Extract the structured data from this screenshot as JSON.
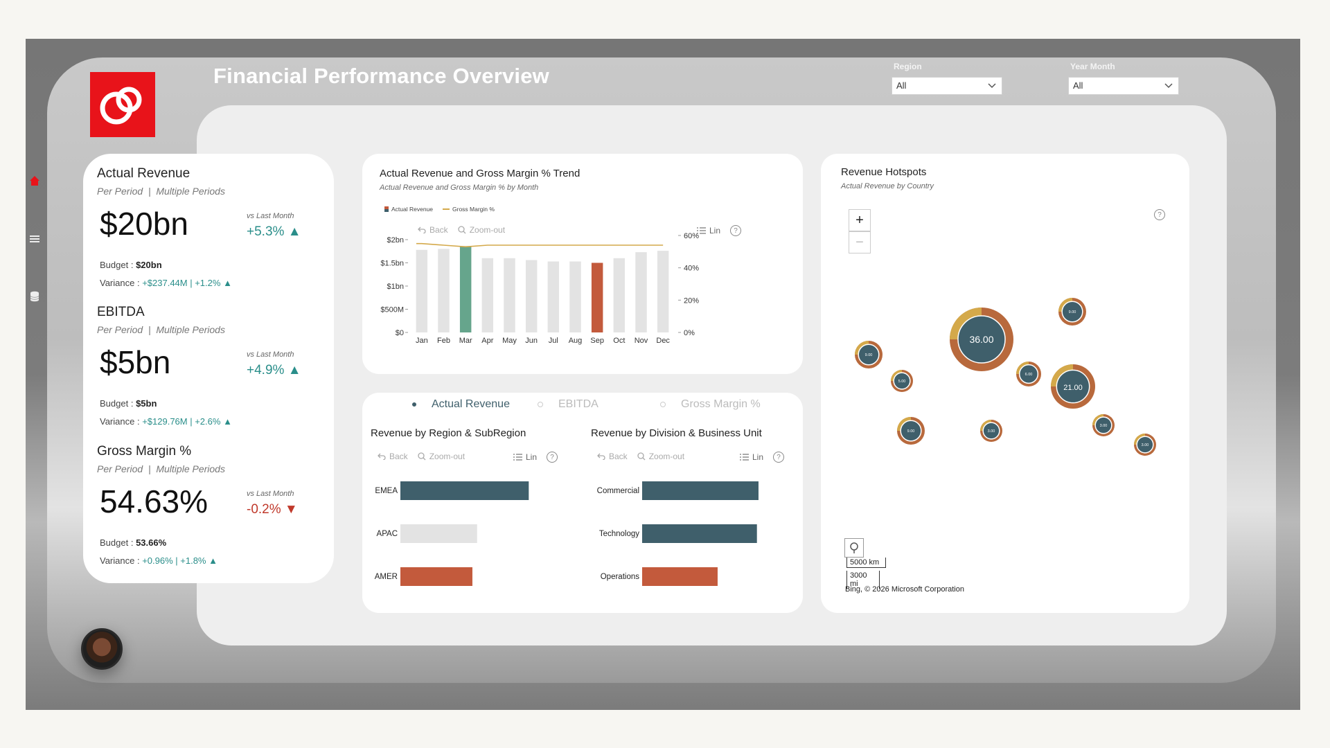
{
  "header": {
    "title": "Financial Performance Overview"
  },
  "filters": {
    "region": {
      "label": "Region",
      "value": "All"
    },
    "year_month": {
      "label": "Year Month",
      "value": "All"
    }
  },
  "nav": {
    "items": [
      "home-icon",
      "menu-icon",
      "database-icon"
    ]
  },
  "kpis": [
    {
      "title": "Actual Revenue",
      "per": "Per Period",
      "sep": "|",
      "multi": "Multiple Periods",
      "value": "$20bn",
      "vs_label": "vs Last Month",
      "delta": "+5.3%",
      "budget_label": "Budget :",
      "budget": "$20bn",
      "variance_label": "Variance :",
      "variance": "+$237.44M | +1.2%"
    },
    {
      "title": "EBITDA",
      "per": "Per Period",
      "sep": "|",
      "multi": "Multiple Periods",
      "value": "$5bn",
      "vs_label": "vs Last Month",
      "delta": "+4.9%",
      "budget_label": "Budget :",
      "budget": "$5bn",
      "variance_label": "Variance :",
      "variance": "+$129.76M | +2.6%"
    },
    {
      "title": "Gross Margin %",
      "per": "Per Period",
      "sep": "|",
      "multi": "Multiple Periods",
      "value": "54.63%",
      "vs_label": "vs Last Month",
      "delta": "-0.2%",
      "budget_label": "Budget :",
      "budget": "53.66%",
      "variance_label": "Variance :",
      "variance": "+0.96% | +1.8%"
    }
  ],
  "trend": {
    "title": "Actual Revenue and Gross Margin % Trend",
    "subtitle": "Actual Revenue and Gross Margin % by Month",
    "legend": [
      "Actual Revenue",
      "Gross Margin %"
    ],
    "toolbar": {
      "back": "Back",
      "zoom": "Zoom-out",
      "lin": "Lin",
      "help": "?"
    }
  },
  "radio": {
    "options": [
      "Actual Revenue",
      "EBITDA",
      "Gross Margin %"
    ],
    "selected": "Actual Revenue"
  },
  "region_chart": {
    "title": "Revenue by Region & SubRegion",
    "toolbar": {
      "back": "Back",
      "zoom": "Zoom-out",
      "lin": "Lin",
      "help": "?"
    }
  },
  "division_chart": {
    "title": "Revenue by Division & Business Unit",
    "toolbar": {
      "back": "Back",
      "zoom": "Zoom-out",
      "lin": "Lin",
      "help": "?"
    }
  },
  "map": {
    "title": "Revenue Hotspots",
    "subtitle": "Actual Revenue by Country",
    "zoom_in": "+",
    "zoom_out": "−",
    "help": "?",
    "scale_km": "5000 km",
    "scale_mi": "3000 mi",
    "attribution": "Bing, © 2026 Microsoft Corporation",
    "bubbles": [
      {
        "label": "36.00",
        "value": 36
      },
      {
        "label": "21.00",
        "value": 21
      },
      {
        "label": "9.00",
        "value": 9
      },
      {
        "label": "9.00",
        "value": 9
      },
      {
        "label": "9.00",
        "value": 9
      },
      {
        "label": "6.00",
        "value": 6
      },
      {
        "label": "5.00",
        "value": 5
      },
      {
        "label": "3.00",
        "value": 3
      },
      {
        "label": "3.00",
        "value": 3
      },
      {
        "label": "3.00",
        "value": 3
      }
    ]
  },
  "colors": {
    "teal": "#3f5f6b",
    "green": "#66a58c",
    "orange": "#c35a3c",
    "gray": "#e3e3e3",
    "gold": "#d4a94a",
    "copper": "#b8693c",
    "pos": "#2a8e8a",
    "neg": "#c0392b"
  },
  "chart_data": [
    {
      "type": "bar",
      "title": "Actual Revenue and Gross Margin % Trend",
      "categories": [
        "Jan",
        "Feb",
        "Mar",
        "Apr",
        "May",
        "Jun",
        "Jul",
        "Aug",
        "Sep",
        "Oct",
        "Nov",
        "Dec"
      ],
      "series": [
        {
          "name": "Actual Revenue",
          "axis": "left",
          "values": [
            1.78,
            1.8,
            1.86,
            1.6,
            1.6,
            1.56,
            1.53,
            1.53,
            1.5,
            1.6,
            1.73,
            1.76
          ]
        },
        {
          "name": "Gross Margin %",
          "axis": "right",
          "type": "line",
          "values": [
            55,
            54,
            53,
            54,
            54,
            54,
            54,
            54,
            54,
            54,
            54,
            54
          ]
        }
      ],
      "highlight": {
        "Mar": "green",
        "Sep": "orange"
      },
      "yticks_left": [
        "$0",
        "$500M",
        "$1bn",
        "$1.5bn",
        "$2bn"
      ],
      "ylim_left": [
        0,
        2
      ],
      "yticks_right": [
        "0%",
        "20%",
        "40%",
        "60%"
      ],
      "ylim_right": [
        0,
        60
      ]
    },
    {
      "type": "bar",
      "orientation": "horizontal",
      "title": "Revenue by Region & SubRegion",
      "categories": [
        "EMEA",
        "APAC",
        "AMER"
      ],
      "values": [
        8.2,
        4.9,
        4.6
      ],
      "colors": [
        "teal",
        "gray",
        "orange"
      ],
      "xlim": [
        0,
        10
      ]
    },
    {
      "type": "bar",
      "orientation": "horizontal",
      "title": "Revenue by Division & Business Unit",
      "categories": [
        "Commercial",
        "Technology",
        "Operations"
      ],
      "values": [
        7.4,
        7.3,
        4.8
      ],
      "colors": [
        "teal",
        "teal",
        "orange"
      ],
      "xlim": [
        0,
        10
      ]
    }
  ]
}
